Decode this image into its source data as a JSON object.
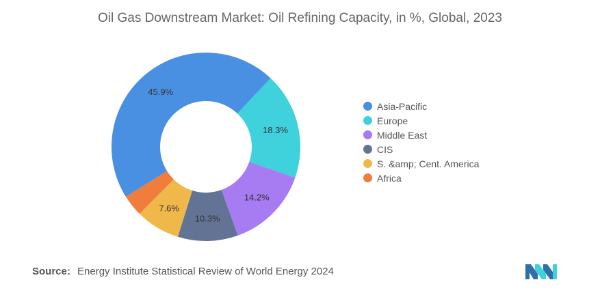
{
  "title": "Oil Gas Downstream Market: Oil Refining Capacity, in %, Global, 2023",
  "chart_data": {
    "type": "pie",
    "donut": true,
    "categories": [
      "Asia-Pacific",
      "Europe",
      "Middle East",
      "CIS",
      "S. &amp; Cent. America",
      "Africa"
    ],
    "values": [
      45.9,
      18.3,
      14.2,
      10.3,
      7.6,
      3.7
    ],
    "labels": [
      "45.9%",
      "18.3%",
      "14.2%",
      "10.3%",
      "7.6%",
      ""
    ],
    "colors": [
      "#4a90e2",
      "#3fd1dc",
      "#a77bf2",
      "#627396",
      "#f0b84a",
      "#f07d3c"
    ],
    "legend_position": "right"
  },
  "source": {
    "label": "Source:",
    "text": "Energy Institute Statistical Review of World Energy 2024"
  },
  "logo": {
    "icon": "mordor-intelligence-logo"
  }
}
